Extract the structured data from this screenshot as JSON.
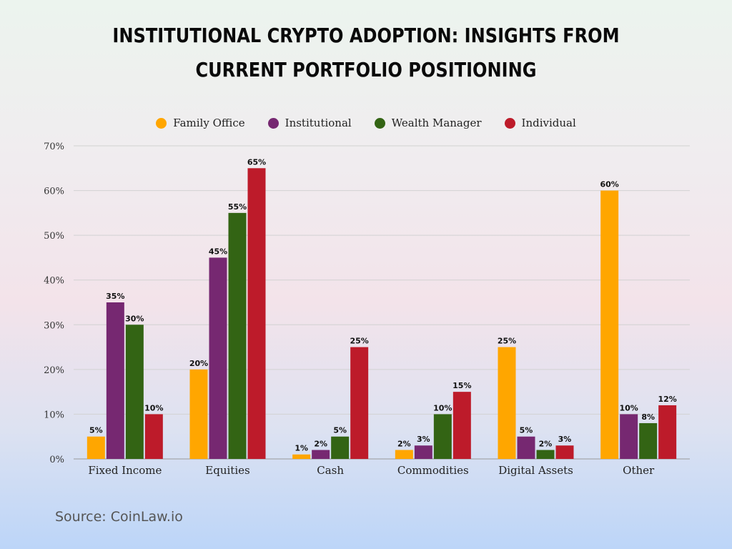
{
  "chart_data": {
    "type": "bar",
    "title": "Institutional Crypto Adoption: Insights from Current Portfolio Positioning",
    "categories": [
      "Fixed Income",
      "Equities",
      "Cash",
      "Commodities",
      "Digital Assets",
      "Other"
    ],
    "series": [
      {
        "name": "Family Office",
        "color": "#ffa600",
        "values": [
          5,
          20,
          1,
          2,
          25,
          60
        ]
      },
      {
        "name": "Institutional",
        "color": "#762871",
        "values": [
          35,
          45,
          2,
          3,
          5,
          10
        ]
      },
      {
        "name": "Wealth Manager",
        "color": "#336414",
        "values": [
          30,
          55,
          5,
          10,
          2,
          8
        ]
      },
      {
        "name": "Individual",
        "color": "#bd1b2a",
        "values": [
          10,
          65,
          25,
          15,
          3,
          12
        ]
      }
    ],
    "y_ticks": [
      "0%",
      "10%",
      "20%",
      "30%",
      "40%",
      "50%",
      "60%",
      "70%"
    ],
    "ylim": [
      0,
      70
    ],
    "value_suffix": "%",
    "grid": true,
    "legend_position": "top-center"
  },
  "source": "Source: CoinLaw.io"
}
